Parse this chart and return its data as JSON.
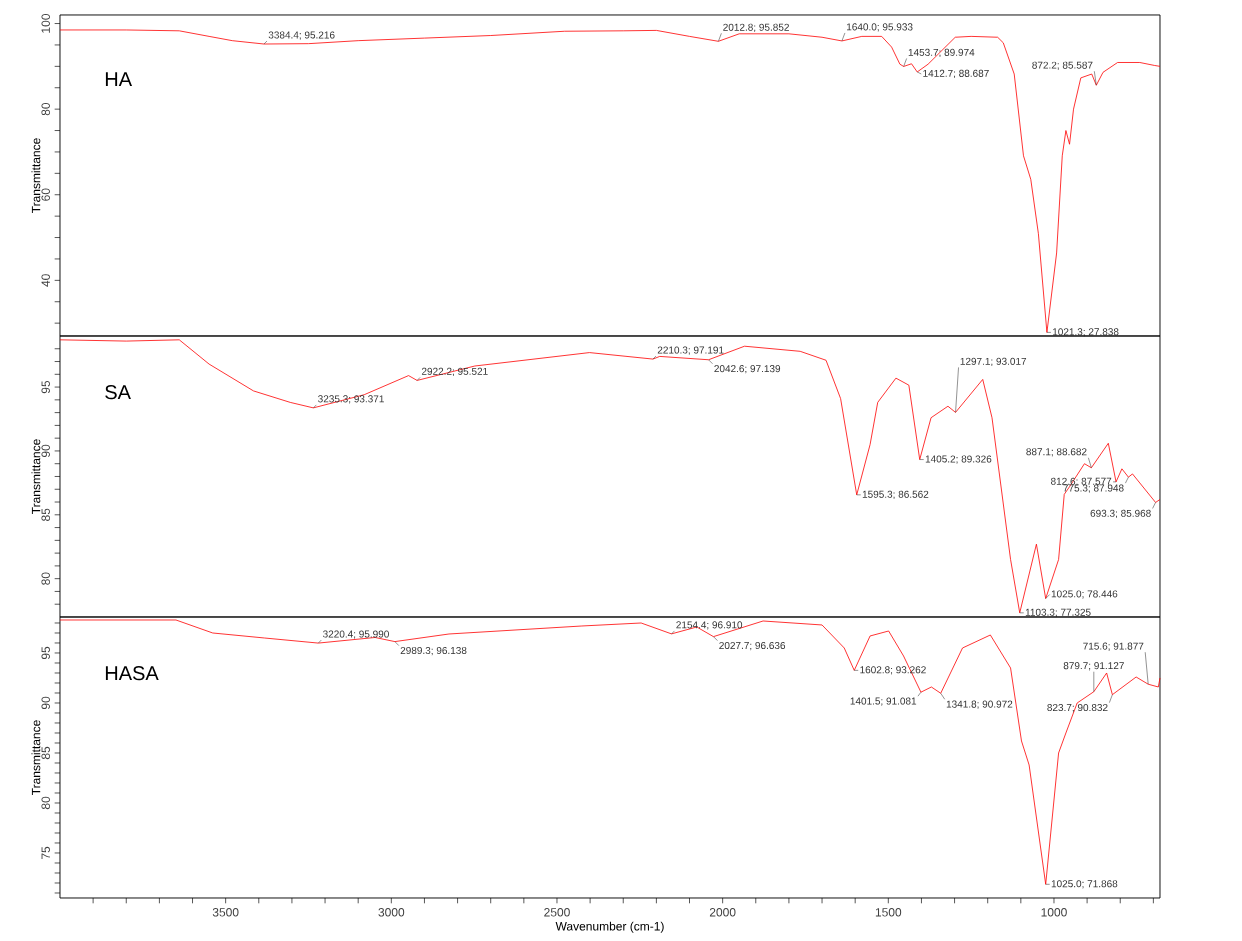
{
  "chart_data": [
    {
      "type": "line",
      "ylabel": "Transmittance",
      "xlim": [
        4000,
        680
      ],
      "ylim": [
        27,
        102
      ],
      "tick_labels": "y",
      "yticks": [
        {
          "value": 30,
          "label": null
        },
        {
          "value": 35,
          "label": null
        },
        40,
        {
          "value": 45,
          "label": null
        },
        {
          "value": 50,
          "label": null
        },
        {
          "value": 55,
          "label": null
        },
        60,
        {
          "value": 65,
          "label": null
        },
        {
          "value": 70,
          "label": null
        },
        {
          "value": 75,
          "label": null
        },
        80,
        {
          "value": 85,
          "label": null
        },
        {
          "value": 90,
          "label": null
        },
        {
          "value": 95,
          "label": null
        },
        100
      ],
      "series": [
        {
          "name": "HA",
          "color": "#ff0000",
          "x": [
            4000,
            3800,
            3640,
            3550,
            3480,
            3384.4,
            3250,
            3100,
            2900,
            2700,
            2477,
            2300,
            2200,
            2100,
            2012.8,
            1950,
            1800,
            1700,
            1640.0,
            1580,
            1520,
            1490,
            1465,
            1453.7,
            1430,
            1412.7,
            1380,
            1298,
            1250,
            1170,
            1153,
            1120,
            1092,
            1070,
            1047,
            1021.3,
            992,
            975,
            964,
            953,
            941,
            919,
            886,
            872.2,
            852,
            808,
            741,
            696,
            680
          ],
          "values": [
            98.5,
            98.5,
            98.3,
            97.0,
            96.0,
            95.216,
            95.3,
            96.0,
            96.6,
            97.2,
            98.2,
            98.3,
            98.4,
            97.0,
            95.852,
            97.6,
            97.6,
            96.8,
            95.933,
            97.0,
            97.0,
            94.5,
            90.5,
            89.974,
            90.6,
            88.687,
            90.5,
            96.8,
            97.0,
            96.8,
            95.5,
            88.2,
            69.1,
            63.6,
            50.9,
            27.838,
            46.4,
            69.1,
            75.0,
            71.8,
            80,
            87.3,
            88.2,
            85.587,
            88.6,
            90.9,
            90.9,
            90.2,
            90.0
          ]
        }
      ],
      "annotations": [
        {
          "text": "3384.4; 95.216",
          "x": 3384.4,
          "y": 95.216
        },
        {
          "text": "2012.8; 95.852",
          "x": 2012.8,
          "y": 95.852
        },
        {
          "text": "1640.0; 95.933",
          "x": 1640.0,
          "y": 95.933
        },
        {
          "text": "1453.7; 89.974",
          "x": 1453.7,
          "y": 89.974
        },
        {
          "text": "1412.7; 88.687",
          "x": 1412.7,
          "y": 88.687
        },
        {
          "text": "872.2; 85.587",
          "x": 872.2,
          "y": 85.587
        },
        {
          "text": "1021.3; 27.838",
          "x": 1021.3,
          "y": 27.838
        }
      ]
    },
    {
      "type": "line",
      "ylabel": "Transmittance",
      "xlim": [
        4000,
        680
      ],
      "ylim": [
        77,
        99
      ],
      "tick_labels": "y",
      "yticks": [
        {
          "value": 78,
          "label": null
        },
        {
          "value": 79,
          "label": null
        },
        80,
        {
          "value": 81,
          "label": null
        },
        {
          "value": 82,
          "label": null
        },
        {
          "value": 83,
          "label": null
        },
        {
          "value": 84,
          "label": null
        },
        85,
        {
          "value": 86,
          "label": null
        },
        {
          "value": 87,
          "label": null
        },
        {
          "value": 88,
          "label": null
        },
        {
          "value": 89,
          "label": null
        },
        90,
        {
          "value": 91,
          "label": null
        },
        {
          "value": 92,
          "label": null
        },
        {
          "value": 93,
          "label": null
        },
        {
          "value": 94,
          "label": null
        },
        95,
        {
          "value": 96,
          "label": null
        },
        {
          "value": 97,
          "label": null
        },
        {
          "value": 98,
          "label": null
        }
      ],
      "series": [
        {
          "name": "SA",
          "color": "#ff0000",
          "x": [
            4000,
            3800,
            3640,
            3550,
            3416,
            3305,
            3235.3,
            3082,
            2948,
            2922.2,
            2748,
            2402,
            2210.3,
            2190,
            2042.6,
            1934,
            1766,
            1688,
            1644,
            1595.3,
            1555,
            1532,
            1477,
            1438,
            1405.2,
            1371,
            1320,
            1297.1,
            1215,
            1187,
            1131,
            1103.3,
            1053,
            1025.0,
            986,
            969,
            953,
            908,
            887.1,
            836,
            812.6,
            795,
            775.3,
            763,
            693.3,
            680
          ],
          "values": [
            98.7,
            98.6,
            98.7,
            96.8,
            94.7,
            93.8,
            93.371,
            94.4,
            95.9,
            95.521,
            96.65,
            97.7,
            97.191,
            97.4,
            97.139,
            98.2,
            97.8,
            97.1,
            94.1,
            86.562,
            90.5,
            93.8,
            95.7,
            95.15,
            89.326,
            92.6,
            93.5,
            93.017,
            95.6,
            92.6,
            81.5,
            77.325,
            82.7,
            78.446,
            81.5,
            86.6,
            87.2,
            89.0,
            88.682,
            90.6,
            87.577,
            88.6,
            87.948,
            88.2,
            85.968,
            86.2
          ]
        }
      ],
      "annotations": [
        {
          "text": "3235.3; 93.371",
          "x": 3235.3,
          "y": 93.371
        },
        {
          "text": "2922.2; 95.521",
          "x": 2922.2,
          "y": 95.521
        },
        {
          "text": "2210.3; 97.191",
          "x": 2210.3,
          "y": 97.191
        },
        {
          "text": "2042.6; 97.139",
          "x": 2042.6,
          "y": 97.139
        },
        {
          "text": "1595.3; 86.562",
          "x": 1595.3,
          "y": 86.562
        },
        {
          "text": "1405.2; 89.326",
          "x": 1405.2,
          "y": 89.326
        },
        {
          "text": "1297.1; 93.017",
          "x": 1297.1,
          "y": 93.017
        },
        {
          "text": "1103.3; 77.325",
          "x": 1103.3,
          "y": 77.325
        },
        {
          "text": "1025.0; 78.446",
          "x": 1025.0,
          "y": 78.446
        },
        {
          "text": "887.1; 88.682",
          "x": 887.1,
          "y": 88.682
        },
        {
          "text": "812.6; 87.577",
          "x": 812.6,
          "y": 87.577
        },
        {
          "text": "775.3; 87.948",
          "x": 775.3,
          "y": 87.948
        },
        {
          "text": "693.3; 85.968",
          "x": 693.3,
          "y": 85.968
        }
      ]
    },
    {
      "type": "line",
      "xlabel": "Wavenumber (cm-1)",
      "ylabel": "Transmittance",
      "xlim": [
        4000,
        680
      ],
      "ylim": [
        70.5,
        98.6
      ],
      "xticks": [
        {
          "value": 3900,
          "label": null
        },
        {
          "value": 3800,
          "label": null
        },
        {
          "value": 3700,
          "label": null
        },
        {
          "value": 3600,
          "label": null
        },
        3500,
        {
          "value": 3400,
          "label": null
        },
        {
          "value": 3300,
          "label": null
        },
        {
          "value": 3200,
          "label": null
        },
        {
          "value": 3100,
          "label": null
        },
        3000,
        {
          "value": 2900,
          "label": null
        },
        {
          "value": 2800,
          "label": null
        },
        {
          "value": 2700,
          "label": null
        },
        {
          "value": 2600,
          "label": null
        },
        2500,
        {
          "value": 2400,
          "label": null
        },
        {
          "value": 2300,
          "label": null
        },
        {
          "value": 2200,
          "label": null
        },
        {
          "value": 2100,
          "label": null
        },
        2000,
        {
          "value": 1900,
          "label": null
        },
        {
          "value": 1800,
          "label": null
        },
        {
          "value": 1700,
          "label": null
        },
        {
          "value": 1600,
          "label": null
        },
        1500,
        {
          "value": 1400,
          "label": null
        },
        {
          "value": 1300,
          "label": null
        },
        {
          "value": 1200,
          "label": null
        },
        {
          "value": 1100,
          "label": null
        },
        1000,
        {
          "value": 900,
          "label": null
        },
        {
          "value": 800,
          "label": null
        },
        {
          "value": 700,
          "label": null
        }
      ],
      "yticks": [
        {
          "value": 71,
          "label": null
        },
        {
          "value": 72,
          "label": null
        },
        {
          "value": 73,
          "label": null
        },
        {
          "value": 74,
          "label": null
        },
        75,
        {
          "value": 76,
          "label": null
        },
        {
          "value": 77,
          "label": null
        },
        {
          "value": 78,
          "label": null
        },
        {
          "value": 79,
          "label": null
        },
        80,
        {
          "value": 81,
          "label": null
        },
        {
          "value": 82,
          "label": null
        },
        {
          "value": 83,
          "label": null
        },
        {
          "value": 84,
          "label": null
        },
        85,
        {
          "value": 86,
          "label": null
        },
        {
          "value": 87,
          "label": null
        },
        {
          "value": 88,
          "label": null
        },
        {
          "value": 89,
          "label": null
        },
        90,
        {
          "value": 91,
          "label": null
        },
        {
          "value": 92,
          "label": null
        },
        {
          "value": 93,
          "label": null
        },
        {
          "value": 94,
          "label": null
        },
        95,
        {
          "value": 96,
          "label": null
        },
        {
          "value": 97,
          "label": null
        },
        {
          "value": 98,
          "label": null
        }
      ],
      "series": [
        {
          "name": "HASA",
          "color": "#ff0000",
          "x": [
            4000,
            3650,
            3539,
            3383,
            3220.4,
            3049,
            2989.3,
            2826,
            2425,
            2246,
            2154.4,
            2078,
            2027.7,
            1878,
            1700,
            1633,
            1602.8,
            1555,
            1499,
            1454,
            1401.5,
            1370,
            1341.8,
            1276,
            1192,
            1131,
            1098,
            1075,
            1025.0,
            986,
            964,
            930,
            879.7,
            841,
            823.7,
            752,
            715.6,
            685,
            680
          ],
          "values": [
            98.3,
            98.3,
            97.0,
            96.5,
            95.99,
            96.55,
            96.138,
            96.9,
            97.7,
            98.0,
            96.91,
            97.6,
            96.636,
            98.2,
            97.8,
            95.5,
            93.262,
            96.7,
            97.2,
            94.7,
            91.081,
            91.6,
            90.972,
            95.5,
            96.8,
            93.5,
            86.2,
            83.8,
            71.868,
            85.0,
            87.0,
            90.0,
            91.127,
            93.0,
            90.832,
            92.6,
            91.877,
            91.6,
            92.5
          ]
        }
      ],
      "annotations": [
        {
          "text": "3220.4; 95.990",
          "x": 3220.4,
          "y": 95.99
        },
        {
          "text": "2989.3; 96.138",
          "x": 2989.3,
          "y": 96.138
        },
        {
          "text": "2154.4; 96.910",
          "x": 2154.4,
          "y": 96.91
        },
        {
          "text": "2027.7; 96.636",
          "x": 2027.7,
          "y": 96.636
        },
        {
          "text": "1602.8; 93.262",
          "x": 1602.8,
          "y": 93.262
        },
        {
          "text": "1401.5; 91.081",
          "x": 1401.5,
          "y": 91.081
        },
        {
          "text": "1341.8; 90.972",
          "x": 1341.8,
          "y": 90.972
        },
        {
          "text": "1025.0; 71.868",
          "x": 1025.0,
          "y": 71.868
        },
        {
          "text": "879.7; 91.127",
          "x": 879.7,
          "y": 91.127
        },
        {
          "text": "823.7; 90.832",
          "x": 823.7,
          "y": 90.832
        },
        {
          "text": "715.6; 91.877",
          "x": 715.6,
          "y": 91.877
        }
      ]
    }
  ]
}
